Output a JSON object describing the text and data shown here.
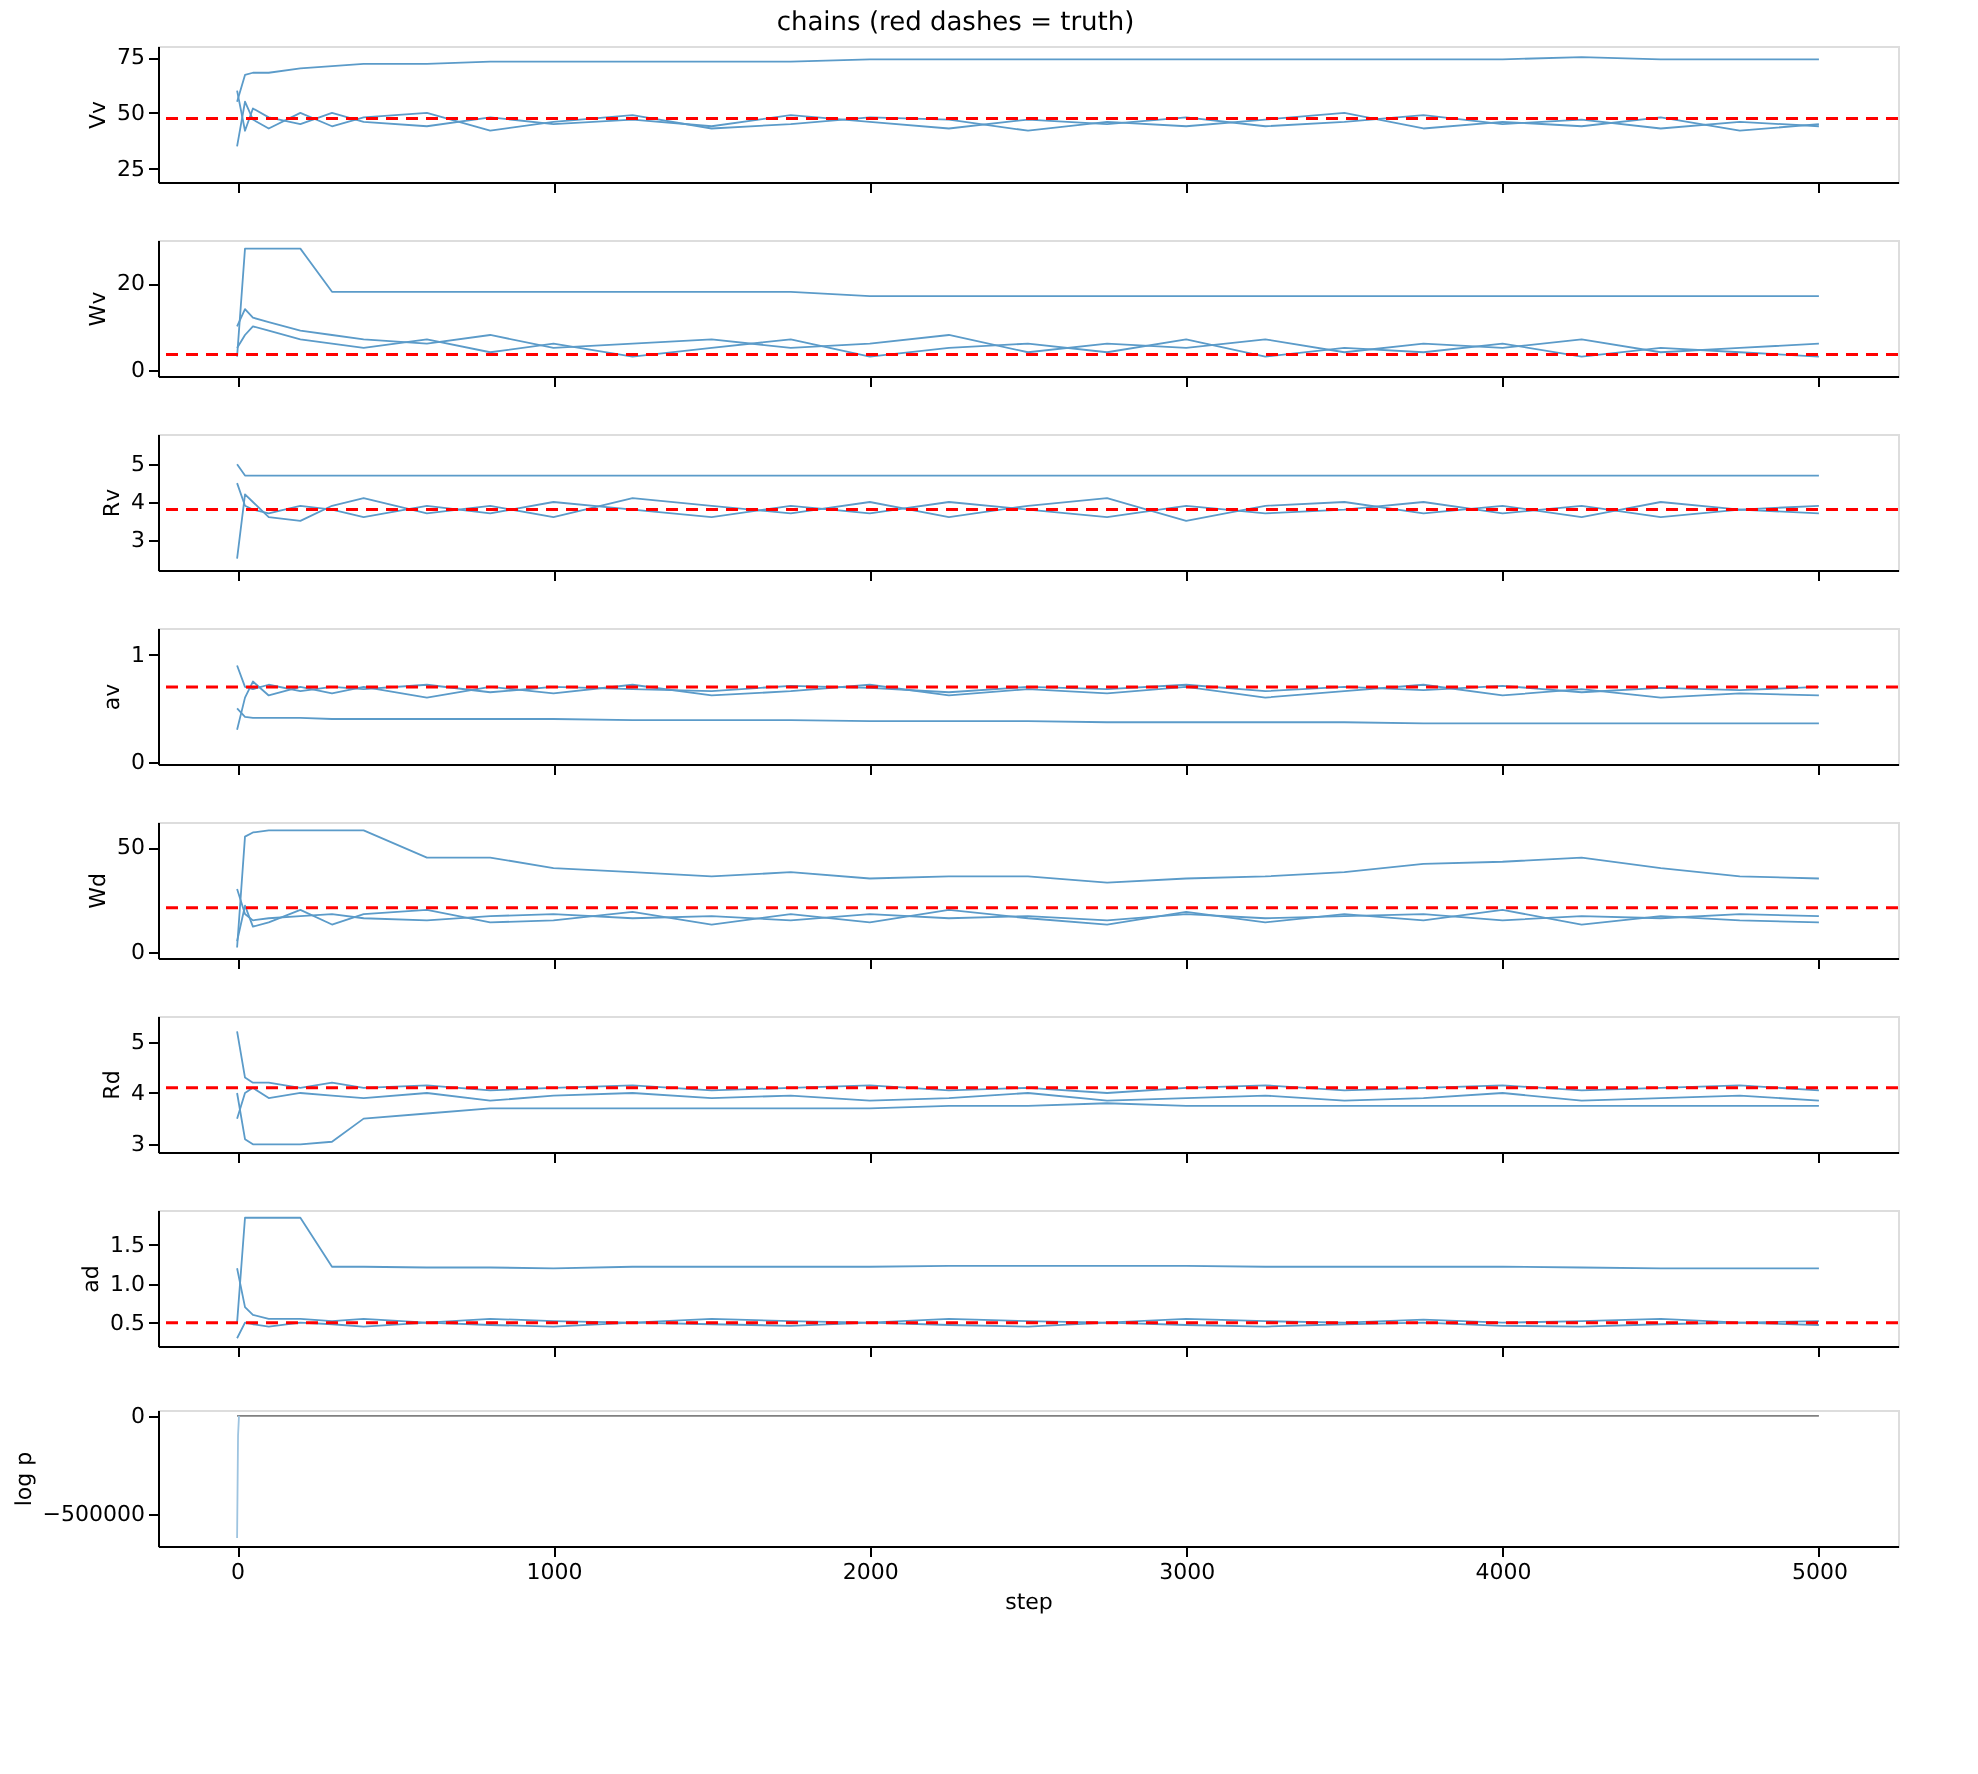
{
  "chart_data": [
    {
      "type": "line",
      "title": "chains (red dashes = truth)",
      "ylabel": "Vv",
      "tick_labels": "y",
      "xlim": [
        -250,
        5250
      ],
      "xticks": [
        0,
        1000,
        2000,
        3000,
        4000,
        5000
      ],
      "ylim": [
        19,
        80
      ],
      "yticks": [
        25,
        50,
        75
      ],
      "x": [
        0,
        25,
        50,
        100,
        200,
        300,
        400,
        600,
        800,
        1000,
        1250,
        1500,
        1750,
        2000,
        2250,
        2500,
        2750,
        3000,
        3250,
        3500,
        3750,
        4000,
        4250,
        4500,
        4750,
        5000
      ],
      "series": [
        {
          "color": "#5b9bc9",
          "values": [
            60,
            42,
            52,
            48,
            45,
            50,
            46,
            44,
            48,
            45,
            47,
            44,
            49,
            46,
            43,
            47,
            45,
            48,
            44,
            46,
            49,
            45,
            47,
            43,
            46,
            44
          ]
        },
        {
          "color": "#5b9bc9",
          "values": [
            35,
            55,
            47,
            43,
            50,
            44,
            48,
            50,
            42,
            46,
            49,
            43,
            45,
            48,
            47,
            42,
            46,
            44,
            47,
            50,
            43,
            46,
            44,
            48,
            42,
            45
          ]
        },
        {
          "color": "#5b9bc9",
          "values": [
            55,
            67,
            68,
            68,
            70,
            71,
            72,
            72,
            73,
            73,
            73,
            73,
            73,
            74,
            74,
            74,
            74,
            74,
            74,
            74,
            74,
            74,
            75,
            74,
            74,
            74
          ]
        }
      ],
      "ref_lines": [
        {
          "axis": "y",
          "value": 47.5,
          "color": "#ff0000",
          "line_style": "dashed"
        }
      ]
    },
    {
      "type": "line",
      "ylabel": "Wv",
      "tick_labels": "y",
      "xlim": [
        -250,
        5250
      ],
      "xticks": [
        0,
        1000,
        2000,
        3000,
        4000,
        5000
      ],
      "ylim": [
        -1.5,
        30
      ],
      "yticks": [
        0,
        20
      ],
      "x": [
        0,
        25,
        50,
        100,
        200,
        300,
        400,
        600,
        800,
        1000,
        1250,
        1500,
        1750,
        2000,
        2250,
        2500,
        2750,
        3000,
        3250,
        3500,
        3750,
        4000,
        4250,
        4500,
        4750,
        5000
      ],
      "series": [
        {
          "color": "#5b9bc9",
          "values": [
            10,
            14,
            12,
            11,
            9,
            8,
            7,
            6,
            8,
            5,
            6,
            7,
            5,
            6,
            8,
            4,
            6,
            5,
            7,
            4,
            6,
            5,
            7,
            4,
            5,
            6
          ]
        },
        {
          "color": "#5b9bc9",
          "values": [
            5,
            8,
            10,
            9,
            7,
            6,
            5,
            7,
            4,
            6,
            3,
            5,
            7,
            3,
            5,
            6,
            4,
            7,
            3,
            5,
            4,
            6,
            3,
            5,
            4,
            3
          ]
        },
        {
          "color": "#5b9bc9",
          "values": [
            3,
            28,
            28,
            28,
            28,
            18,
            18,
            18,
            18,
            18,
            18,
            18,
            18,
            17,
            17,
            17,
            17,
            17,
            17,
            17,
            17,
            17,
            17,
            17,
            17,
            17
          ]
        }
      ],
      "ref_lines": [
        {
          "axis": "y",
          "value": 3.5,
          "color": "#ff0000",
          "line_style": "dashed"
        }
      ]
    },
    {
      "type": "line",
      "ylabel": "Rv",
      "tick_labels": "y",
      "xlim": [
        -250,
        5250
      ],
      "xticks": [
        0,
        1000,
        2000,
        3000,
        4000,
        5000
      ],
      "ylim": [
        2.2,
        5.8
      ],
      "yticks": [
        3,
        4,
        5
      ],
      "x": [
        0,
        25,
        50,
        100,
        200,
        300,
        400,
        600,
        800,
        1000,
        1250,
        1500,
        1750,
        2000,
        2250,
        2500,
        2750,
        3000,
        3250,
        3500,
        3750,
        4000,
        4250,
        4500,
        4750,
        5000
      ],
      "series": [
        {
          "color": "#5b9bc9",
          "values": [
            4.5,
            3.9,
            3.8,
            3.7,
            3.9,
            3.8,
            3.6,
            3.9,
            3.7,
            4.0,
            3.8,
            3.6,
            3.9,
            3.7,
            4.0,
            3.8,
            3.6,
            3.9,
            3.7,
            3.8,
            4.0,
            3.7,
            3.9,
            3.6,
            3.8,
            3.7
          ]
        },
        {
          "color": "#5b9bc9",
          "values": [
            2.5,
            4.2,
            4.0,
            3.6,
            3.5,
            3.9,
            4.1,
            3.7,
            3.9,
            3.6,
            4.1,
            3.9,
            3.7,
            4.0,
            3.6,
            3.9,
            4.1,
            3.5,
            3.9,
            4.0,
            3.7,
            3.9,
            3.6,
            4.0,
            3.8,
            3.9
          ]
        },
        {
          "color": "#5b9bc9",
          "values": [
            5.0,
            4.7,
            4.7,
            4.7,
            4.7,
            4.7,
            4.7,
            4.7,
            4.7,
            4.7,
            4.7,
            4.7,
            4.7,
            4.7,
            4.7,
            4.7,
            4.7,
            4.7,
            4.7,
            4.7,
            4.7,
            4.7,
            4.7,
            4.7,
            4.7,
            4.7
          ]
        }
      ],
      "ref_lines": [
        {
          "axis": "y",
          "value": 3.8,
          "color": "#ff0000",
          "line_style": "dashed"
        }
      ]
    },
    {
      "type": "line",
      "ylabel": "av",
      "tick_labels": "y",
      "xlim": [
        -250,
        5250
      ],
      "xticks": [
        0,
        1000,
        2000,
        3000,
        4000,
        5000
      ],
      "ylim": [
        -0.02,
        1.25
      ],
      "yticks": [
        0,
        1
      ],
      "x": [
        0,
        25,
        50,
        100,
        200,
        300,
        400,
        600,
        800,
        1000,
        1250,
        1500,
        1750,
        2000,
        2250,
        2500,
        2750,
        3000,
        3250,
        3500,
        3750,
        4000,
        4250,
        4500,
        4750,
        5000
      ],
      "series": [
        {
          "color": "#5b9bc9",
          "values": [
            0.9,
            0.7,
            0.68,
            0.72,
            0.66,
            0.7,
            0.68,
            0.72,
            0.65,
            0.7,
            0.68,
            0.66,
            0.71,
            0.69,
            0.65,
            0.7,
            0.68,
            0.72,
            0.66,
            0.7,
            0.67,
            0.71,
            0.65,
            0.69,
            0.67,
            0.7
          ]
        },
        {
          "color": "#5b9bc9",
          "values": [
            0.3,
            0.6,
            0.75,
            0.62,
            0.7,
            0.64,
            0.7,
            0.6,
            0.7,
            0.64,
            0.72,
            0.62,
            0.66,
            0.72,
            0.62,
            0.68,
            0.64,
            0.7,
            0.6,
            0.66,
            0.72,
            0.62,
            0.68,
            0.6,
            0.64,
            0.62
          ]
        },
        {
          "color": "#5b9bc9",
          "values": [
            0.5,
            0.42,
            0.41,
            0.41,
            0.41,
            0.4,
            0.4,
            0.4,
            0.4,
            0.4,
            0.39,
            0.39,
            0.39,
            0.38,
            0.38,
            0.38,
            0.37,
            0.37,
            0.37,
            0.37,
            0.36,
            0.36,
            0.36,
            0.36,
            0.36,
            0.36
          ]
        }
      ],
      "ref_lines": [
        {
          "axis": "y",
          "value": 0.7,
          "color": "#ff0000",
          "line_style": "dashed"
        }
      ]
    },
    {
      "type": "line",
      "ylabel": "Wd",
      "tick_labels": "y",
      "xlim": [
        -250,
        5250
      ],
      "xticks": [
        0,
        1000,
        2000,
        3000,
        4000,
        5000
      ],
      "ylim": [
        -3,
        62
      ],
      "yticks": [
        0,
        50
      ],
      "x": [
        0,
        25,
        50,
        100,
        200,
        300,
        400,
        600,
        800,
        1000,
        1250,
        1500,
        1750,
        2000,
        2250,
        2500,
        2750,
        3000,
        3250,
        3500,
        3750,
        4000,
        4250,
        4500,
        4750,
        5000
      ],
      "series": [
        {
          "color": "#5b9bc9",
          "values": [
            30,
            18,
            15,
            16,
            17,
            18,
            16,
            15,
            17,
            18,
            16,
            17,
            15,
            18,
            16,
            17,
            15,
            18,
            16,
            17,
            18,
            15,
            17,
            16,
            18,
            17
          ]
        },
        {
          "color": "#5b9bc9",
          "values": [
            5,
            22,
            12,
            14,
            20,
            13,
            18,
            20,
            14,
            15,
            19,
            13,
            18,
            14,
            20,
            16,
            13,
            19,
            14,
            18,
            15,
            20,
            13,
            17,
            15,
            14
          ]
        },
        {
          "color": "#5b9bc9",
          "values": [
            2,
            55,
            57,
            58,
            58,
            58,
            58,
            45,
            45,
            40,
            38,
            36,
            38,
            35,
            36,
            36,
            33,
            35,
            36,
            38,
            42,
            43,
            45,
            40,
            36,
            35
          ]
        }
      ],
      "ref_lines": [
        {
          "axis": "y",
          "value": 21,
          "color": "#ff0000",
          "line_style": "dashed"
        }
      ]
    },
    {
      "type": "line",
      "ylabel": "Rd",
      "tick_labels": "y",
      "xlim": [
        -250,
        5250
      ],
      "xticks": [
        0,
        1000,
        2000,
        3000,
        4000,
        5000
      ],
      "ylim": [
        2.85,
        5.5
      ],
      "yticks": [
        3,
        4,
        5
      ],
      "x": [
        0,
        25,
        50,
        100,
        200,
        300,
        400,
        600,
        800,
        1000,
        1250,
        1500,
        1750,
        2000,
        2250,
        2500,
        2750,
        3000,
        3250,
        3500,
        3750,
        4000,
        4250,
        4500,
        4750,
        5000
      ],
      "series": [
        {
          "color": "#5b9bc9",
          "values": [
            5.2,
            4.3,
            4.2,
            4.2,
            4.1,
            4.2,
            4.1,
            4.15,
            4.05,
            4.1,
            4.15,
            4.05,
            4.1,
            4.15,
            4.05,
            4.1,
            4.0,
            4.1,
            4.15,
            4.05,
            4.1,
            4.15,
            4.05,
            4.1,
            4.15,
            4.05
          ]
        },
        {
          "color": "#5b9bc9",
          "values": [
            3.5,
            4.0,
            4.1,
            3.9,
            4.0,
            3.95,
            3.9,
            4.0,
            3.85,
            3.95,
            4.0,
            3.9,
            3.95,
            3.85,
            3.9,
            4.0,
            3.85,
            3.9,
            3.95,
            3.85,
            3.9,
            4.0,
            3.85,
            3.9,
            3.95,
            3.85
          ]
        },
        {
          "color": "#5b9bc9",
          "values": [
            4.0,
            3.1,
            3.0,
            3.0,
            3.0,
            3.05,
            3.5,
            3.6,
            3.7,
            3.7,
            3.7,
            3.7,
            3.7,
            3.7,
            3.75,
            3.75,
            3.8,
            3.75,
            3.75,
            3.75,
            3.75,
            3.75,
            3.75,
            3.75,
            3.75,
            3.75
          ]
        }
      ],
      "ref_lines": [
        {
          "axis": "y",
          "value": 4.1,
          "color": "#ff0000",
          "line_style": "dashed"
        }
      ]
    },
    {
      "type": "line",
      "ylabel": "ad",
      "tick_labels": "y",
      "xlim": [
        -250,
        5250
      ],
      "xticks": [
        0,
        1000,
        2000,
        3000,
        4000,
        5000
      ],
      "ylim": [
        0.2,
        1.95
      ],
      "yticks": [
        0.5,
        {
          "value": 1,
          "label": "1.0"
        },
        1.5
      ],
      "x": [
        0,
        25,
        50,
        100,
        200,
        300,
        400,
        600,
        800,
        1000,
        1250,
        1500,
        1750,
        2000,
        2250,
        2500,
        2750,
        3000,
        3250,
        3500,
        3750,
        4000,
        4250,
        4500,
        4750,
        5000
      ],
      "series": [
        {
          "color": "#5b9bc9",
          "values": [
            1.2,
            0.7,
            0.6,
            0.55,
            0.55,
            0.52,
            0.55,
            0.5,
            0.55,
            0.52,
            0.5,
            0.55,
            0.52,
            0.5,
            0.55,
            0.52,
            0.5,
            0.55,
            0.52,
            0.5,
            0.54,
            0.5,
            0.52,
            0.55,
            0.5,
            0.52
          ]
        },
        {
          "color": "#5b9bc9",
          "values": [
            0.3,
            0.5,
            0.48,
            0.45,
            0.5,
            0.48,
            0.45,
            0.5,
            0.47,
            0.45,
            0.5,
            0.48,
            0.46,
            0.5,
            0.47,
            0.45,
            0.5,
            0.47,
            0.45,
            0.48,
            0.5,
            0.46,
            0.45,
            0.48,
            0.5,
            0.47
          ]
        },
        {
          "color": "#5b9bc9",
          "values": [
            0.5,
            1.85,
            1.85,
            1.85,
            1.85,
            1.22,
            1.22,
            1.21,
            1.21,
            1.2,
            1.22,
            1.22,
            1.22,
            1.22,
            1.23,
            1.23,
            1.23,
            1.23,
            1.22,
            1.22,
            1.22,
            1.22,
            1.21,
            1.2,
            1.2,
            1.2
          ]
        }
      ],
      "ref_lines": [
        {
          "axis": "y",
          "value": 0.5,
          "color": "#ff0000",
          "line_style": "dashed"
        }
      ]
    },
    {
      "type": "line",
      "ylabel": "log p",
      "xlabel": "step",
      "xlim": [
        -250,
        5250
      ],
      "xticks": [
        0,
        1000,
        2000,
        3000,
        4000,
        5000
      ],
      "ylim": [
        -660000,
        30000
      ],
      "yticks": [
        {
          "value": -500000,
          "label": "−500000"
        },
        0
      ],
      "x": [
        0,
        1000,
        2000,
        3000,
        4000,
        5000
      ],
      "series": [
        {
          "color": "#808080",
          "values": [
            0,
            0,
            0,
            0,
            0,
            0
          ]
        },
        {
          "color": "#9ec4e0",
          "x": [
            0,
            3,
            6
          ],
          "values": [
            -620000,
            -100000,
            0
          ]
        }
      ]
    }
  ]
}
